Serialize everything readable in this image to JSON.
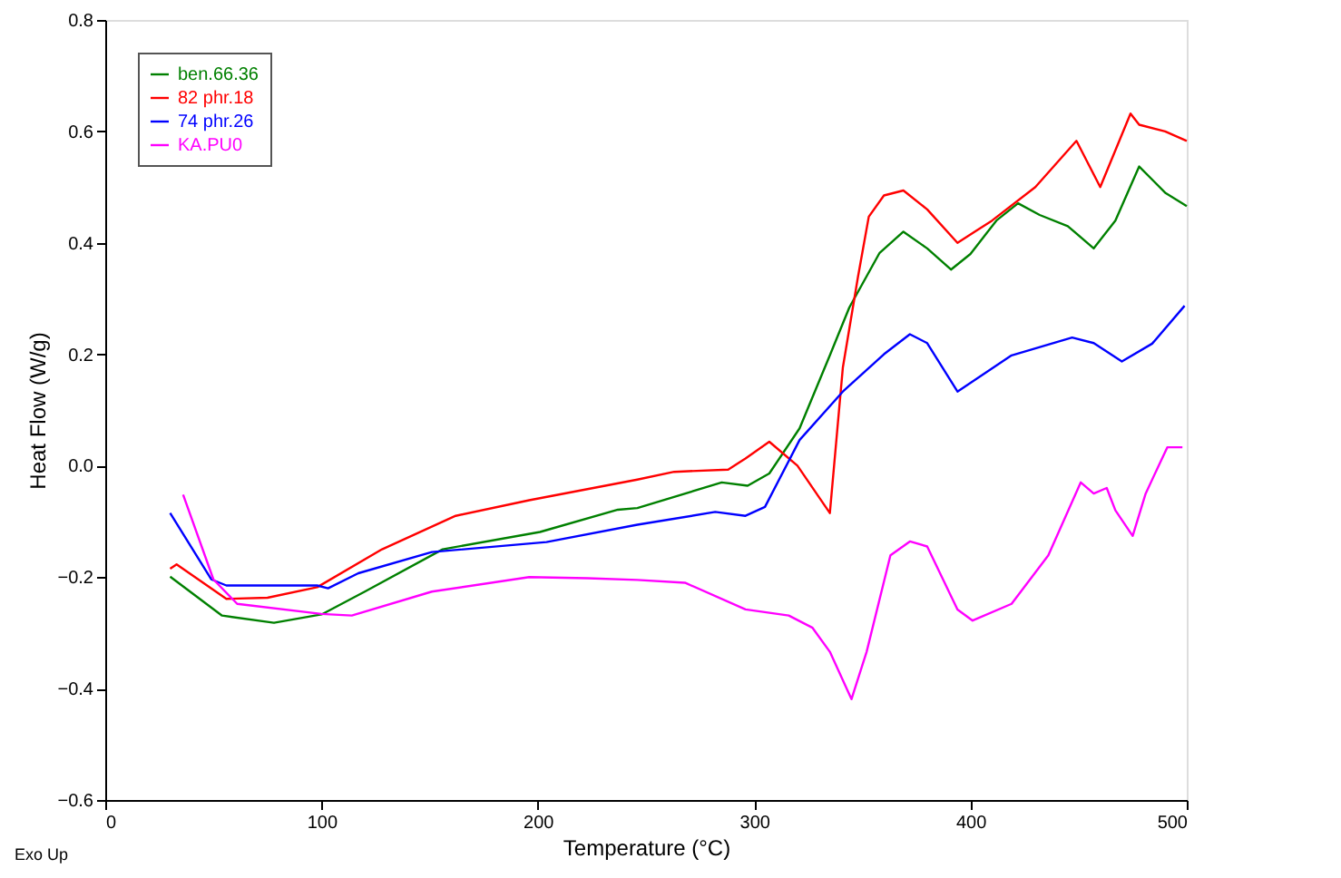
{
  "chart_data": {
    "type": "line",
    "xlabel": "Temperature (°C)",
    "ylabel": "Heat Flow (W/g)",
    "annotations": [
      "Exo Up"
    ],
    "xlim": [
      0,
      500
    ],
    "xticks": [
      0,
      100,
      200,
      300,
      400,
      500
    ],
    "ylim": [
      -0.6,
      0.8
    ],
    "yticks": [
      -0.6,
      -0.4,
      -0.2,
      {
        "value": 0,
        "label": "0.0"
      },
      0.2,
      0.4,
      0.6,
      0.8
    ],
    "grid": false,
    "legend": "top left",
    "marker": "none",
    "line_style": "solid",
    "series": [
      {
        "name": "ben.66.36",
        "color": "#008000",
        "x": [
          30,
          54,
          78,
          100,
          120,
          156,
          201,
          237,
          246,
          285,
          297,
          307,
          321,
          335,
          344,
          358,
          369,
          380,
          391,
          400,
          412,
          422,
          432,
          445,
          457,
          467,
          478,
          490,
          500
        ],
        "values": [
          -0.199,
          -0.269,
          -0.282,
          -0.267,
          -0.226,
          -0.15,
          -0.119,
          -0.079,
          -0.076,
          -0.03,
          -0.036,
          -0.014,
          0.067,
          0.198,
          0.284,
          0.382,
          0.42,
          0.39,
          0.352,
          0.38,
          0.44,
          0.471,
          0.45,
          0.43,
          0.39,
          0.44,
          0.537,
          0.49,
          0.466
        ]
      },
      {
        "name": "82 phr.18",
        "color": "#ff0000",
        "x": [
          30,
          33,
          56,
          75,
          98,
          128,
          162,
          196,
          246,
          263,
          288,
          296,
          307,
          320,
          335,
          341,
          348,
          353,
          360,
          369,
          380,
          394,
          410,
          430,
          449,
          460,
          474,
          478,
          490,
          500
        ],
        "values": [
          -0.185,
          -0.177,
          -0.239,
          -0.237,
          -0.218,
          -0.15,
          -0.09,
          -0.062,
          -0.025,
          -0.011,
          -0.007,
          0.013,
          0.043,
          0.0,
          -0.085,
          0.176,
          0.339,
          0.447,
          0.485,
          0.494,
          0.46,
          0.4,
          0.44,
          0.5,
          0.583,
          0.5,
          0.632,
          0.612,
          0.6,
          0.583
        ]
      },
      {
        "name": "74 phr.26",
        "color": "#0000ff",
        "x": [
          30,
          49,
          56,
          98,
          103,
          117,
          151,
          204,
          246,
          282,
          296,
          305,
          321,
          341,
          360,
          372,
          380,
          394,
          419,
          447,
          457,
          470,
          484,
          499
        ],
        "values": [
          -0.085,
          -0.204,
          -0.215,
          -0.215,
          -0.22,
          -0.193,
          -0.155,
          -0.137,
          -0.106,
          -0.083,
          -0.09,
          -0.074,
          0.046,
          0.133,
          0.2,
          0.236,
          0.22,
          0.133,
          0.198,
          0.23,
          0.22,
          0.187,
          0.219,
          0.287
        ]
      },
      {
        "name": "KA.PU0",
        "color": "#ff00ff",
        "x": [
          36,
          50,
          61,
          100,
          114,
          151,
          196,
          223,
          246,
          268,
          296,
          316,
          327,
          335,
          345,
          352,
          363,
          372,
          380,
          394,
          401,
          419,
          436,
          451,
          457,
          463,
          467,
          475,
          481,
          491,
          498
        ],
        "values": [
          -0.052,
          -0.204,
          -0.248,
          -0.266,
          -0.269,
          -0.226,
          -0.2,
          -0.202,
          -0.205,
          -0.21,
          -0.258,
          -0.269,
          -0.291,
          -0.334,
          -0.419,
          -0.334,
          -0.161,
          -0.136,
          -0.145,
          -0.258,
          -0.278,
          -0.248,
          -0.161,
          -0.03,
          -0.05,
          -0.04,
          -0.08,
          -0.126,
          -0.05,
          0.033,
          0.033
        ]
      }
    ]
  }
}
